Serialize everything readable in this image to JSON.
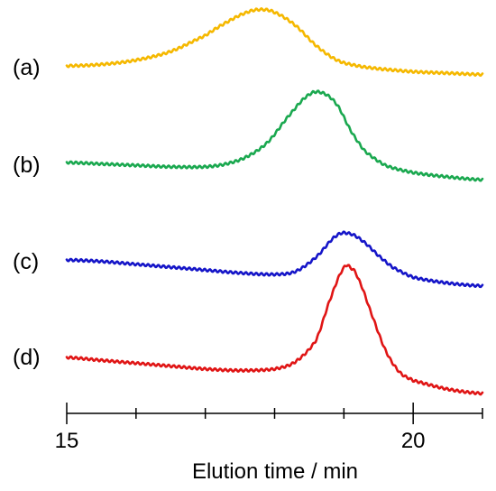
{
  "chart_data": {
    "type": "line",
    "title": "",
    "xlabel": "Elution time / min",
    "ylabel": "",
    "xlim": [
      15,
      21
    ],
    "major_ticks": [
      15,
      20
    ],
    "minor_ticks": [
      16,
      17,
      18,
      19,
      21
    ],
    "tick_labels": [
      "15",
      "20"
    ],
    "grid": false,
    "legend": "none",
    "series": [
      {
        "label": "(a)",
        "color": "#f5b800",
        "x": [
          15.0,
          15.5,
          16.0,
          16.5,
          17.0,
          17.3,
          17.6,
          17.8,
          18.0,
          18.3,
          18.6,
          18.9,
          19.2,
          19.5,
          20.0,
          20.5,
          21.0
        ],
        "y": [
          0.0,
          0.01,
          0.04,
          0.1,
          0.21,
          0.3,
          0.37,
          0.39,
          0.37,
          0.28,
          0.14,
          0.04,
          0.0,
          -0.02,
          -0.04,
          -0.05,
          -0.06
        ]
      },
      {
        "label": "(b)",
        "color": "#1aa84f",
        "x": [
          15.0,
          15.5,
          16.0,
          16.5,
          17.0,
          17.3,
          17.6,
          17.9,
          18.2,
          18.5,
          18.7,
          18.9,
          19.1,
          19.3,
          19.6,
          20.0,
          20.5,
          21.0
        ],
        "y": [
          0.0,
          -0.01,
          -0.02,
          -0.03,
          -0.03,
          -0.01,
          0.04,
          0.14,
          0.32,
          0.47,
          0.48,
          0.4,
          0.22,
          0.08,
          -0.02,
          -0.07,
          -0.1,
          -0.12
        ]
      },
      {
        "label": "(c)",
        "color": "#1515c8",
        "x": [
          15.0,
          15.5,
          16.0,
          16.5,
          17.0,
          17.5,
          18.0,
          18.3,
          18.6,
          18.9,
          19.1,
          19.3,
          19.5,
          19.7,
          20.0,
          20.5,
          21.0
        ],
        "y": [
          0.0,
          -0.01,
          -0.03,
          -0.05,
          -0.07,
          -0.09,
          -0.1,
          -0.08,
          0.02,
          0.17,
          0.18,
          0.12,
          0.03,
          -0.05,
          -0.12,
          -0.16,
          -0.18
        ]
      },
      {
        "label": "(d)",
        "color": "#e01515",
        "x": [
          15.0,
          15.5,
          16.0,
          16.5,
          17.0,
          17.5,
          18.0,
          18.3,
          18.6,
          18.8,
          19.0,
          19.1,
          19.2,
          19.4,
          19.6,
          19.8,
          20.0,
          20.5,
          21.0
        ],
        "y": [
          0.0,
          -0.02,
          -0.04,
          -0.06,
          -0.08,
          -0.09,
          -0.08,
          -0.03,
          0.12,
          0.4,
          0.62,
          0.62,
          0.55,
          0.3,
          0.05,
          -0.1,
          -0.16,
          -0.22,
          -0.25
        ]
      }
    ]
  }
}
